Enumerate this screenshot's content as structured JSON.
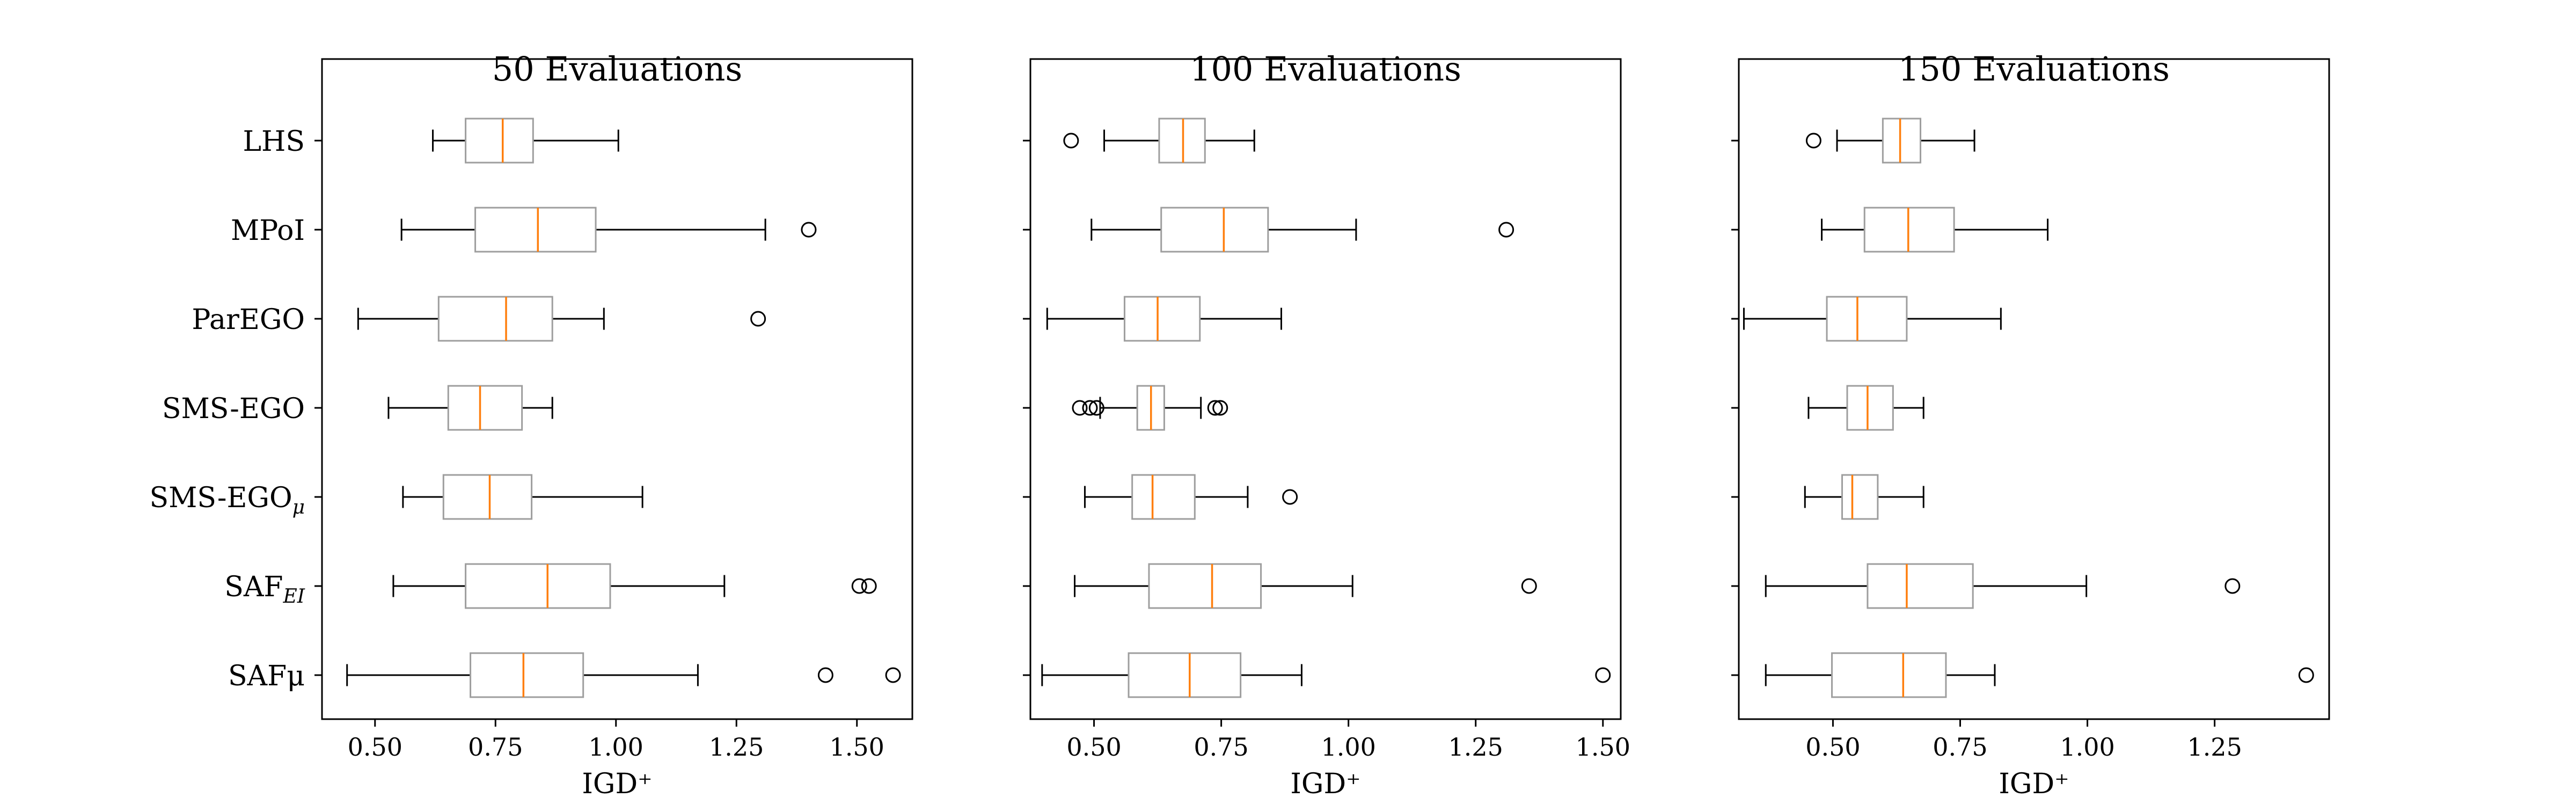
{
  "chart_data": [
    {
      "type": "boxplot",
      "title": "50 Evaluations",
      "xlabel": "IGD⁺",
      "ylabel": "",
      "xlim": [
        0.39,
        1.615
      ],
      "xticks": [
        "0.50",
        "0.75",
        "1.00",
        "1.25",
        "1.50"
      ],
      "categories": [
        "LHS",
        "MPoI",
        "ParEGO",
        "SMS-EGO",
        "SMS-EGOμ",
        "SAF_EI",
        "SAFμ"
      ],
      "boxes": [
        {
          "whislo": 0.62,
          "q1": 0.688,
          "med": 0.765,
          "q3": 0.828,
          "whishi": 1.005,
          "fliers": []
        },
        {
          "whislo": 0.555,
          "q1": 0.708,
          "med": 0.838,
          "q3": 0.958,
          "whishi": 1.31,
          "fliers": [
            1.4
          ]
        },
        {
          "whislo": 0.465,
          "q1": 0.632,
          "med": 0.772,
          "q3": 0.868,
          "whishi": 0.975,
          "fliers": [
            1.295
          ]
        },
        {
          "whislo": 0.528,
          "q1": 0.652,
          "med": 0.718,
          "q3": 0.805,
          "whishi": 0.868,
          "fliers": []
        },
        {
          "whislo": 0.558,
          "q1": 0.642,
          "med": 0.738,
          "q3": 0.825,
          "whishi": 1.055,
          "fliers": []
        },
        {
          "whislo": 0.538,
          "q1": 0.688,
          "med": 0.858,
          "q3": 0.988,
          "whishi": 1.225,
          "fliers": [
            1.505,
            1.525
          ]
        },
        {
          "whislo": 0.442,
          "q1": 0.698,
          "med": 0.808,
          "q3": 0.932,
          "whishi": 1.17,
          "fliers": [
            1.435,
            1.575
          ]
        }
      ]
    },
    {
      "type": "boxplot",
      "title": "100 Evaluations",
      "xlabel": "IGD⁺",
      "ylabel": "",
      "xlim": [
        0.375,
        1.535
      ],
      "xticks": [
        "0.50",
        "0.75",
        "1.00",
        "1.25",
        "1.50"
      ],
      "categories": [
        "LHS",
        "MPoI",
        "ParEGO",
        "SMS-EGO",
        "SMS-EGOμ",
        "SAF_EI",
        "SAFμ"
      ],
      "boxes": [
        {
          "whislo": 0.52,
          "q1": 0.628,
          "med": 0.675,
          "q3": 0.718,
          "whishi": 0.815,
          "fliers": [
            0.455
          ]
        },
        {
          "whislo": 0.495,
          "q1": 0.632,
          "med": 0.755,
          "q3": 0.842,
          "whishi": 1.015,
          "fliers": [
            1.31
          ]
        },
        {
          "whislo": 0.408,
          "q1": 0.56,
          "med": 0.625,
          "q3": 0.708,
          "whishi": 0.868,
          "fliers": []
        },
        {
          "whislo": 0.512,
          "q1": 0.585,
          "med": 0.612,
          "q3": 0.638,
          "whishi": 0.71,
          "fliers": [
            0.472,
            0.492,
            0.505,
            0.738,
            0.748
          ]
        },
        {
          "whislo": 0.482,
          "q1": 0.575,
          "med": 0.615,
          "q3": 0.698,
          "whishi": 0.802,
          "fliers": [
            0.885
          ]
        },
        {
          "whislo": 0.462,
          "q1": 0.608,
          "med": 0.732,
          "q3": 0.828,
          "whishi": 1.008,
          "fliers": [
            1.355
          ]
        },
        {
          "whislo": 0.398,
          "q1": 0.568,
          "med": 0.688,
          "q3": 0.788,
          "whishi": 0.908,
          "fliers": [
            1.5
          ]
        }
      ]
    },
    {
      "type": "boxplot",
      "title": "150 Evaluations",
      "xlabel": "IGD⁺",
      "ylabel": "",
      "xlim": [
        0.315,
        1.475
      ],
      "xticks": [
        "0.50",
        "0.75",
        "1.00",
        "1.25"
      ],
      "categories": [
        "LHS",
        "MPoI",
        "ParEGO",
        "SMS-EGO",
        "SMS-EGOμ",
        "SAF_EI",
        "SAFμ"
      ],
      "boxes": [
        {
          "whislo": 0.508,
          "q1": 0.598,
          "med": 0.632,
          "q3": 0.672,
          "whishi": 0.778,
          "fliers": [
            0.462
          ]
        },
        {
          "whislo": 0.478,
          "q1": 0.562,
          "med": 0.648,
          "q3": 0.738,
          "whishi": 0.922,
          "fliers": []
        },
        {
          "whislo": 0.325,
          "q1": 0.488,
          "med": 0.548,
          "q3": 0.645,
          "whishi": 0.83,
          "fliers": []
        },
        {
          "whislo": 0.452,
          "q1": 0.528,
          "med": 0.568,
          "q3": 0.618,
          "whishi": 0.678,
          "fliers": []
        },
        {
          "whislo": 0.445,
          "q1": 0.518,
          "med": 0.538,
          "q3": 0.588,
          "whishi": 0.678,
          "fliers": []
        },
        {
          "whislo": 0.368,
          "q1": 0.568,
          "med": 0.645,
          "q3": 0.775,
          "whishi": 0.998,
          "fliers": [
            1.285
          ]
        },
        {
          "whislo": 0.368,
          "q1": 0.498,
          "med": 0.638,
          "q3": 0.722,
          "whishi": 0.818,
          "fliers": [
            1.43
          ]
        }
      ]
    }
  ],
  "category_labels": [
    {
      "main": "LHS",
      "sub": ""
    },
    {
      "main": "MPoI",
      "sub": ""
    },
    {
      "main": "ParEGO",
      "sub": ""
    },
    {
      "main": "SMS-EGO",
      "sub": ""
    },
    {
      "main": "SMS-EGO",
      "sub": "μ"
    },
    {
      "main": "SAF",
      "sub": "EI"
    },
    {
      "main": "SAFμ",
      "sub": ""
    }
  ],
  "colors": {
    "box": "#9e9e9e",
    "median": "#ff7f0e",
    "whisker": "#000000",
    "flier": "#000000",
    "frame": "#000000",
    "background": "#ffffff"
  }
}
